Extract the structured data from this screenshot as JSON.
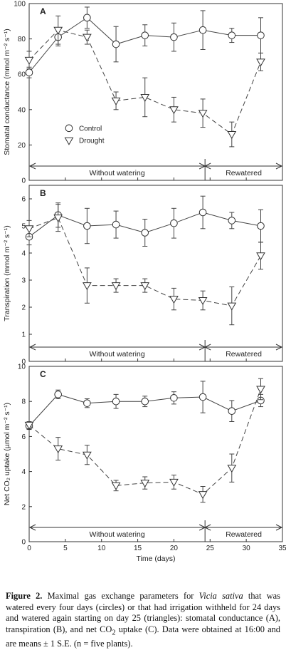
{
  "chart_data": [
    {
      "type": "line",
      "panel_label": "A",
      "ylabel": "Stomatal conductance (mmol m⁻² s⁻¹)",
      "ylim": [
        0,
        100
      ],
      "yticks": [
        0,
        20,
        40,
        60,
        80,
        100
      ],
      "xlim": [
        0,
        35
      ],
      "legend": {
        "placement": "left-middle",
        "entries": [
          "Control",
          "Drought"
        ]
      },
      "periods": {
        "without": "Without watering",
        "rewatered": "Rewatered"
      },
      "series": [
        {
          "name": "Control",
          "marker": "circle",
          "line": "solid",
          "x": [
            0,
            4,
            8,
            12,
            16,
            20,
            24,
            28,
            32
          ],
          "y": [
            61,
            81,
            92,
            77,
            82,
            81,
            85,
            82,
            82
          ],
          "err": [
            3,
            5,
            6,
            10,
            6,
            8,
            11,
            4,
            10
          ]
        },
        {
          "name": "Drought",
          "marker": "triangle",
          "line": "dashed",
          "x": [
            0,
            4,
            8,
            12,
            16,
            20,
            24,
            28,
            32
          ],
          "y": [
            68,
            85,
            81,
            45,
            47,
            40,
            38,
            26,
            67
          ],
          "err": [
            5,
            8,
            4,
            5,
            11,
            7,
            8,
            7,
            5
          ]
        }
      ]
    },
    {
      "type": "line",
      "panel_label": "B",
      "ylabel": "Transpiration (mmol m⁻² s⁻¹)",
      "ylim": [
        0,
        6.5
      ],
      "yticks": [
        0,
        1,
        2,
        3,
        4,
        5,
        6
      ],
      "xlim": [
        0,
        35
      ],
      "periods": {
        "without": "Without watering",
        "rewatered": "Rewatered"
      },
      "series": [
        {
          "name": "Control",
          "marker": "circle",
          "line": "solid",
          "x": [
            0,
            4,
            8,
            12,
            16,
            20,
            24,
            28,
            32
          ],
          "y": [
            4.6,
            5.4,
            5.0,
            5.05,
            4.75,
            5.1,
            5.5,
            5.2,
            5.0
          ],
          "err": [
            0.3,
            0.45,
            0.65,
            0.5,
            0.5,
            0.55,
            0.6,
            0.3,
            0.6
          ]
        },
        {
          "name": "Drought",
          "marker": "triangle",
          "line": "dashed",
          "x": [
            0,
            4,
            8,
            12,
            16,
            20,
            24,
            28,
            32
          ],
          "y": [
            4.9,
            5.3,
            2.8,
            2.8,
            2.8,
            2.3,
            2.25,
            2.05,
            3.9
          ],
          "err": [
            0.3,
            0.5,
            0.65,
            0.25,
            0.25,
            0.4,
            0.35,
            0.7,
            0.5
          ]
        }
      ]
    },
    {
      "type": "line",
      "panel_label": "C",
      "ylabel": "Net CO₂ uptake (µmol m⁻² s⁻¹)",
      "ylim": [
        0,
        10
      ],
      "yticks": [
        0,
        2,
        4,
        6,
        8,
        10
      ],
      "xlim": [
        0,
        35
      ],
      "xticks": [
        0,
        5,
        10,
        15,
        20,
        25,
        30,
        35
      ],
      "xlabel": "Time (days)",
      "periods": {
        "without": "Without watering",
        "rewatered": "Rewatered"
      },
      "series": [
        {
          "name": "Control",
          "marker": "circle",
          "line": "solid",
          "x": [
            0,
            4,
            8,
            12,
            16,
            20,
            24,
            28,
            32
          ],
          "y": [
            6.6,
            8.4,
            7.9,
            8.0,
            8.0,
            8.2,
            8.25,
            7.45,
            8.05
          ],
          "err": [
            0.2,
            0.25,
            0.25,
            0.4,
            0.3,
            0.35,
            0.9,
            0.6,
            0.35
          ]
        },
        {
          "name": "Drought",
          "marker": "triangle",
          "line": "dashed",
          "x": [
            0,
            4,
            8,
            12,
            16,
            20,
            24,
            28,
            32
          ],
          "y": [
            6.65,
            5.3,
            4.95,
            3.2,
            3.35,
            3.4,
            2.7,
            4.2,
            8.7
          ],
          "err": [
            0.2,
            0.65,
            0.55,
            0.3,
            0.35,
            0.4,
            0.45,
            0.8,
            0.6
          ]
        }
      ]
    }
  ],
  "caption": {
    "label": "Figure 2.",
    "t1": " Maximal gas exchange parameters for ",
    "species": "Vicia sativa",
    "t2": " that was watered every four days (circles) or that had irrigation withheld for 24 days and watered again starting on day 25 (triangles): stomatal conductance (A), transpiration (B), and net CO",
    "sub": "2",
    "t3": " uptake (C). Data were obtained at 16:00 and are means ± 1 S.E. (n = five plants)."
  }
}
